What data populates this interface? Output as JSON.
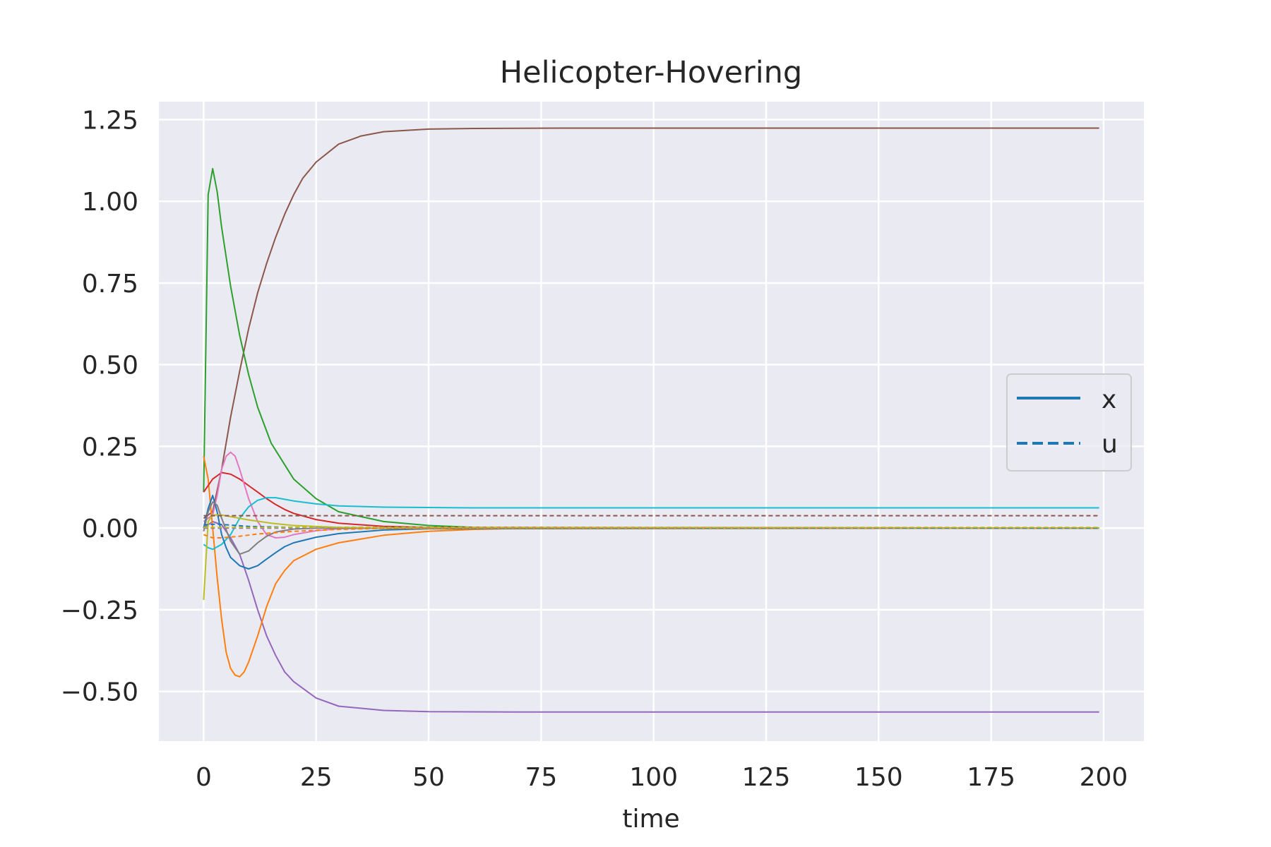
{
  "chart_data": {
    "type": "line",
    "title": "Helicopter-Hovering",
    "xlabel": "time",
    "ylabel": "",
    "xlim": [
      -9.95,
      208.95
    ],
    "ylim": [
      -0.652,
      1.305
    ],
    "grid": true,
    "legend_placement": "center-right",
    "x_ticks": [
      0,
      25,
      50,
      75,
      100,
      125,
      150,
      175,
      200
    ],
    "x_tick_labels": [
      "0",
      "25",
      "50",
      "75",
      "100",
      "125",
      "150",
      "175",
      "200"
    ],
    "y_ticks": [
      1.25,
      1.0,
      0.75,
      0.5,
      0.25,
      0.0,
      -0.25,
      -0.5
    ],
    "y_tick_labels": [
      "1.25",
      "1.00",
      "0.75",
      "0.50",
      "0.25",
      "0.00",
      "−0.25",
      "−0.50"
    ],
    "legend": [
      {
        "label": "x",
        "style": "solid",
        "color": "#1f77b4"
      },
      {
        "label": "u",
        "style": "dashed",
        "color": "#1f77b4"
      }
    ],
    "series": [
      {
        "color": "#8c564b",
        "style": "solid",
        "points": [
          [
            0,
            0.03
          ],
          [
            2,
            0.05
          ],
          [
            4,
            0.18
          ],
          [
            6,
            0.34
          ],
          [
            8,
            0.48
          ],
          [
            10,
            0.61
          ],
          [
            12,
            0.72
          ],
          [
            14,
            0.81
          ],
          [
            16,
            0.89
          ],
          [
            18,
            0.96
          ],
          [
            20,
            1.02
          ],
          [
            22,
            1.07
          ],
          [
            25,
            1.12
          ],
          [
            30,
            1.175
          ],
          [
            35,
            1.2
          ],
          [
            40,
            1.213
          ],
          [
            50,
            1.221
          ],
          [
            60,
            1.223
          ],
          [
            80,
            1.224
          ],
          [
            199,
            1.224
          ]
        ]
      },
      {
        "color": "#2ca02c",
        "style": "solid",
        "points": [
          [
            0,
            0.11
          ],
          [
            1,
            1.02
          ],
          [
            2,
            1.1
          ],
          [
            3,
            1.03
          ],
          [
            4,
            0.92
          ],
          [
            6,
            0.74
          ],
          [
            8,
            0.59
          ],
          [
            10,
            0.47
          ],
          [
            12,
            0.37
          ],
          [
            15,
            0.26
          ],
          [
            20,
            0.15
          ],
          [
            25,
            0.09
          ],
          [
            30,
            0.05
          ],
          [
            40,
            0.02
          ],
          [
            50,
            0.008
          ],
          [
            60,
            0.002
          ],
          [
            70,
            0.0
          ],
          [
            199,
            0.0
          ]
        ]
      },
      {
        "color": "#9467bd",
        "style": "solid",
        "points": [
          [
            0,
            0.0
          ],
          [
            2,
            0.02
          ],
          [
            4,
            0.01
          ],
          [
            6,
            -0.03
          ],
          [
            8,
            -0.08
          ],
          [
            10,
            -0.16
          ],
          [
            12,
            -0.25
          ],
          [
            14,
            -0.33
          ],
          [
            16,
            -0.39
          ],
          [
            18,
            -0.44
          ],
          [
            20,
            -0.47
          ],
          [
            25,
            -0.52
          ],
          [
            30,
            -0.545
          ],
          [
            40,
            -0.558
          ],
          [
            50,
            -0.562
          ],
          [
            70,
            -0.563
          ],
          [
            199,
            -0.563
          ]
        ]
      },
      {
        "color": "#ff7f0e",
        "style": "solid",
        "points": [
          [
            0,
            0.22
          ],
          [
            1,
            0.15
          ],
          [
            2,
            0.0
          ],
          [
            3,
            -0.15
          ],
          [
            4,
            -0.28
          ],
          [
            5,
            -0.38
          ],
          [
            6,
            -0.43
          ],
          [
            7,
            -0.45
          ],
          [
            8,
            -0.455
          ],
          [
            9,
            -0.44
          ],
          [
            10,
            -0.41
          ],
          [
            12,
            -0.33
          ],
          [
            14,
            -0.24
          ],
          [
            16,
            -0.17
          ],
          [
            18,
            -0.13
          ],
          [
            20,
            -0.1
          ],
          [
            25,
            -0.065
          ],
          [
            30,
            -0.045
          ],
          [
            40,
            -0.022
          ],
          [
            50,
            -0.01
          ],
          [
            60,
            -0.004
          ],
          [
            70,
            -0.001
          ],
          [
            199,
            0.0
          ]
        ]
      },
      {
        "color": "#d62728",
        "style": "solid",
        "points": [
          [
            0,
            0.11
          ],
          [
            2,
            0.15
          ],
          [
            4,
            0.17
          ],
          [
            6,
            0.165
          ],
          [
            8,
            0.15
          ],
          [
            10,
            0.13
          ],
          [
            12,
            0.11
          ],
          [
            14,
            0.09
          ],
          [
            16,
            0.072
          ],
          [
            18,
            0.057
          ],
          [
            20,
            0.045
          ],
          [
            25,
            0.026
          ],
          [
            30,
            0.015
          ],
          [
            40,
            0.005
          ],
          [
            50,
            0.002
          ],
          [
            199,
            0.0
          ]
        ]
      },
      {
        "color": "#e377c2",
        "style": "solid",
        "points": [
          [
            0,
            0.02
          ],
          [
            2,
            0.04
          ],
          [
            3,
            0.1
          ],
          [
            4,
            0.18
          ],
          [
            5,
            0.22
          ],
          [
            6,
            0.232
          ],
          [
            7,
            0.22
          ],
          [
            8,
            0.18
          ],
          [
            10,
            0.09
          ],
          [
            12,
            0.02
          ],
          [
            14,
            -0.02
          ],
          [
            16,
            -0.03
          ],
          [
            18,
            -0.028
          ],
          [
            20,
            -0.02
          ],
          [
            25,
            -0.008
          ],
          [
            30,
            -0.002
          ],
          [
            40,
            0.0
          ],
          [
            199,
            0.0
          ]
        ]
      },
      {
        "color": "#17becf",
        "style": "solid",
        "points": [
          [
            0,
            -0.05
          ],
          [
            1,
            -0.06
          ],
          [
            2,
            -0.065
          ],
          [
            4,
            -0.05
          ],
          [
            6,
            -0.02
          ],
          [
            8,
            0.03
          ],
          [
            10,
            0.065
          ],
          [
            12,
            0.085
          ],
          [
            14,
            0.093
          ],
          [
            16,
            0.093
          ],
          [
            18,
            0.088
          ],
          [
            20,
            0.083
          ],
          [
            25,
            0.074
          ],
          [
            30,
            0.068
          ],
          [
            40,
            0.064
          ],
          [
            60,
            0.062
          ],
          [
            199,
            0.062
          ]
        ]
      },
      {
        "color": "#1f77b4",
        "style": "solid",
        "points": [
          [
            0,
            0.0
          ],
          [
            1,
            0.06
          ],
          [
            2,
            0.1
          ],
          [
            3,
            0.05
          ],
          [
            4,
            -0.02
          ],
          [
            5,
            -0.06
          ],
          [
            6,
            -0.09
          ],
          [
            8,
            -0.115
          ],
          [
            10,
            -0.125
          ],
          [
            12,
            -0.115
          ],
          [
            14,
            -0.095
          ],
          [
            16,
            -0.075
          ],
          [
            18,
            -0.057
          ],
          [
            20,
            -0.045
          ],
          [
            25,
            -0.028
          ],
          [
            30,
            -0.017
          ],
          [
            40,
            -0.006
          ],
          [
            50,
            -0.002
          ],
          [
            199,
            0.0
          ]
        ]
      },
      {
        "color": "#7f7f7f",
        "style": "solid",
        "points": [
          [
            0,
            -0.01
          ],
          [
            1,
            0.05
          ],
          [
            2,
            0.08
          ],
          [
            3,
            0.07
          ],
          [
            4,
            0.03
          ],
          [
            6,
            -0.04
          ],
          [
            8,
            -0.08
          ],
          [
            10,
            -0.07
          ],
          [
            12,
            -0.045
          ],
          [
            14,
            -0.025
          ],
          [
            16,
            -0.012
          ],
          [
            20,
            -0.003
          ],
          [
            25,
            0.0
          ],
          [
            199,
            0.0
          ]
        ]
      },
      {
        "color": "#bcbd22",
        "style": "solid",
        "points": [
          [
            0,
            -0.22
          ],
          [
            0.5,
            -0.1
          ],
          [
            1,
            0.02
          ],
          [
            2,
            0.04
          ],
          [
            4,
            0.04
          ],
          [
            6,
            0.035
          ],
          [
            8,
            0.03
          ],
          [
            10,
            0.025
          ],
          [
            15,
            0.015
          ],
          [
            20,
            0.008
          ],
          [
            30,
            0.002
          ],
          [
            40,
            0.0
          ],
          [
            199,
            0.0
          ]
        ]
      },
      {
        "color": "#8c564b",
        "style": "dashed",
        "points": [
          [
            0,
            0.038
          ],
          [
            199,
            0.038
          ]
        ]
      },
      {
        "color": "#9467bd",
        "style": "dashed",
        "points": [
          [
            0,
            0.0
          ],
          [
            199,
            0.0
          ]
        ]
      },
      {
        "color": "#ff7f0e",
        "style": "dashed",
        "points": [
          [
            0,
            -0.02
          ],
          [
            2,
            -0.03
          ],
          [
            4,
            -0.03
          ],
          [
            8,
            -0.025
          ],
          [
            12,
            -0.018
          ],
          [
            20,
            -0.01
          ],
          [
            30,
            -0.004
          ],
          [
            40,
            -0.001
          ],
          [
            199,
            0.0
          ]
        ]
      },
      {
        "color": "#1f77b4",
        "style": "dashed",
        "points": [
          [
            0,
            0.01
          ],
          [
            3,
            0.012
          ],
          [
            10,
            0.005
          ],
          [
            20,
            0.002
          ],
          [
            199,
            0.0
          ]
        ]
      },
      {
        "color": "#bcbd22",
        "style": "dashed",
        "points": [
          [
            0,
            0.002
          ],
          [
            199,
            0.002
          ]
        ]
      }
    ]
  }
}
